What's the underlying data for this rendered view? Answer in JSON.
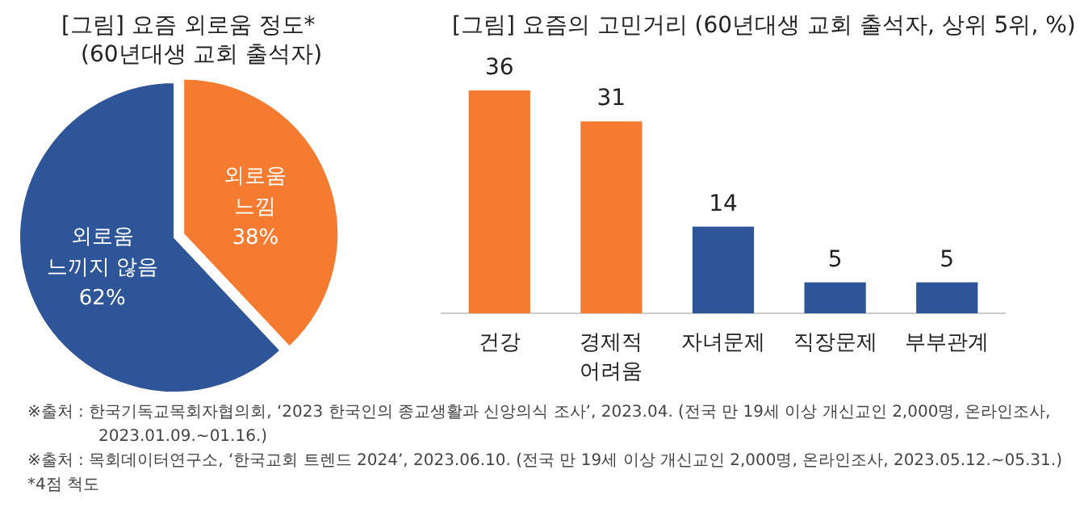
{
  "chart_data": [
    {
      "type": "pie",
      "title": "[그림] 요즘 외로움 정도*",
      "subtitle": "(60년대생 교회 출석자)",
      "categories": [
        "외로움\n느낌",
        "외로움\n느끼지 않음"
      ],
      "values": [
        38,
        62
      ],
      "value_labels": [
        "38%",
        "62%"
      ],
      "colors": [
        "#f47b2f",
        "#2e5597"
      ]
    },
    {
      "type": "bar",
      "title": "[그림] 요즘의 고민거리 (60년대생 교회 출석자, 상위 5위, %)",
      "categories": [
        "건강",
        "경제적\n어려움",
        "자녀문제",
        "직장문제",
        "부부관계"
      ],
      "values": [
        36,
        31,
        14,
        5,
        5
      ],
      "colors": [
        "#f47b2f",
        "#f47b2f",
        "#2e5597",
        "#2e5597",
        "#2e5597"
      ],
      "relative": false,
      "data_labels": true,
      "annotations": [
        "※출처 : 한국기독교목회자협의회, ‘2023 한국인의 종교생활과 신앙의식 조사’, 2023.04. (전국 만 19세 이상 개신교인 2,000명, 온라인조사,\n2023.01.09.~01.16.)",
        "※출처 : 목회데이터연구소, ‘한국교회 트렌드 2024’, 2023.06.10. (전국 만 19세 이상 개신교인 2,000명, 온라인조사, 2023.05.12.~05.31.)",
        "*4점 척도"
      ]
    }
  ]
}
